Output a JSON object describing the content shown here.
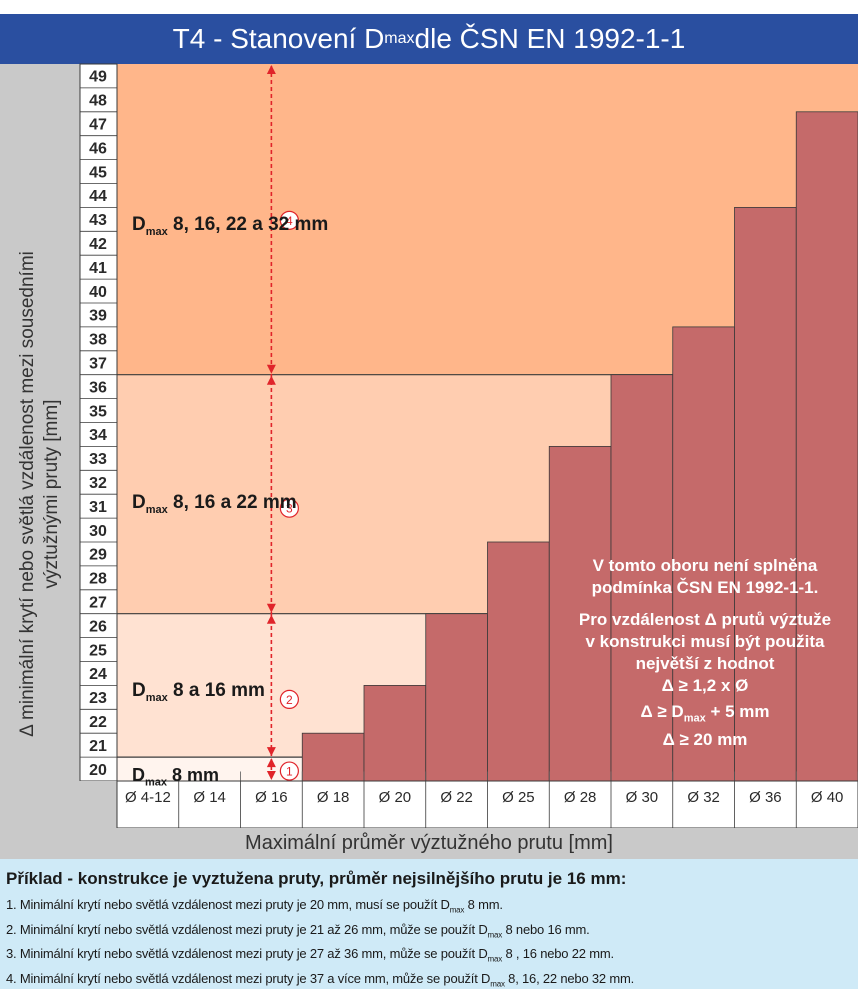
{
  "title": {
    "prefix": "T4 - Stanovení D",
    "sub": "max",
    "suffix": " dle ČSN EN 1992-1-1"
  },
  "y_axis_label_line1": "Δ minimální krytí nebo světlá vzdálenost mezi sousedními",
  "y_axis_label_line2": "výztužnými pruty  [mm]",
  "x_axis_title": "Maximální průměr výztužného prutu [mm]",
  "zones": [
    {
      "prefix": "D",
      "sub": "max",
      "text": " 8 mm",
      "marker": "1"
    },
    {
      "prefix": "D",
      "sub": "max",
      "text": " 8 a 16 mm",
      "marker": "2"
    },
    {
      "prefix": "D",
      "sub": "max",
      "text": " 8, 16 a 22 mm",
      "marker": "3"
    },
    {
      "prefix": "D",
      "sub": "max",
      "text": " 8, 16, 22 a 32 mm",
      "marker": "4"
    }
  ],
  "region_note": {
    "line1": "V tomto oboru není splněna",
    "line2": "podmínka ČSN EN 1992-1-1.",
    "line3": "Pro vzdálenost Δ prutů výztuže",
    "line4": "v konstrukci musí být použita",
    "line5": "největší z hodnot",
    "line6": "Δ ≥  1,2 x Ø",
    "line7_prefix": "Δ ≥ D",
    "line7_sub": "max",
    "line7_suffix": " + 5 mm",
    "line8": "Δ ≥ 20 mm"
  },
  "example": {
    "heading": "Příklad - konstrukce je vyztužena pruty, průměr nejsilnějšího prutu je 16 mm:",
    "lines": [
      {
        "pre": "1. Minimální krytí nebo světlá vzdálenost mezi pruty je 20 mm, musí se použít D",
        "sub": "max",
        "post": " 8 mm."
      },
      {
        "pre": "2. Minimální krytí nebo světlá vzdálenost mezi pruty je 21 až 26 mm, může se použít D",
        "sub": "max",
        "post": " 8 nebo 16 mm."
      },
      {
        "pre": "3. Minimální krytí nebo světlá vzdálenost mezi pruty je 27 až 36 mm, může se použít D",
        "sub": "max",
        "post": " 8 , 16 nebo 22 mm."
      },
      {
        "pre": "4. Minimální krytí nebo světlá vzdálenost mezi pruty je 37 a více mm, může se použít D",
        "sub": "max",
        "post": " 8, 16, 22 nebo 32 mm."
      }
    ]
  },
  "colors": {
    "title_bg": "#2a4fa0",
    "zone1": "#fff4ee",
    "zone2": "#ffe2d2",
    "zone3": "#ffcdb0",
    "zone4": "#ffb68a",
    "forbidden": "#c56a6a",
    "arrow": "#e0242a",
    "axis_bg": "#c9c9c9",
    "example_bg": "#cfeaf7"
  },
  "chart_data": {
    "type": "bar",
    "categories": [
      "Ø 4-12",
      "Ø 14",
      "Ø 16",
      "Ø 18",
      "Ø 20",
      "Ø 22",
      "Ø 25",
      "Ø 28",
      "Ø 30",
      "Ø 32",
      "Ø 36",
      "Ø 40"
    ],
    "y_ticks": [
      20,
      21,
      22,
      23,
      24,
      25,
      26,
      27,
      28,
      29,
      30,
      31,
      32,
      33,
      34,
      35,
      36,
      37,
      38,
      39,
      40,
      41,
      42,
      43,
      44,
      45,
      46,
      47,
      48,
      49
    ],
    "ylim": [
      20,
      49
    ],
    "min_spacing_threshold": [
      20,
      20,
      20,
      22,
      24,
      27,
      30,
      34,
      37,
      39,
      44,
      48
    ],
    "zone_boundaries": [
      20,
      26,
      36,
      49
    ],
    "xlabel": "Maximální průměr výztužného prutu [mm]",
    "ylabel": "Δ minimální krytí nebo světlá vzdálenost mezi sousedními výztužnými pruty  [mm]"
  }
}
